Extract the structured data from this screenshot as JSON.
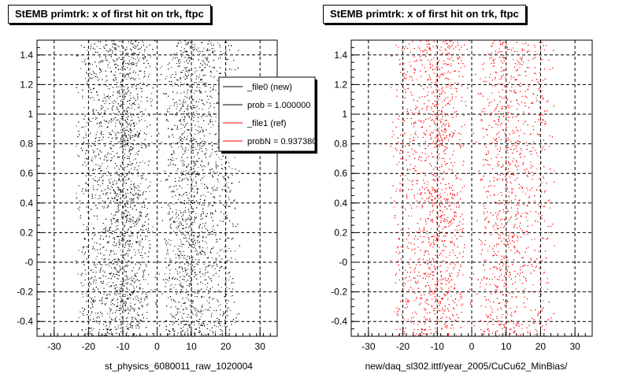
{
  "colors": {
    "new": "#000000",
    "ref": "#ff0000",
    "grid": "#000000",
    "background": "#ffffff"
  },
  "chart_data": [
    {
      "type": "scatter",
      "title": "StEMB primtrk: x of first hit on trk, ftpc",
      "xlabel": "st_physics_6080011_raw_1020004",
      "ylabel": "",
      "xlim": [
        -35,
        35
      ],
      "ylim": [
        -0.5,
        1.5
      ],
      "xticks": [
        -30,
        -20,
        -10,
        0,
        10,
        20,
        30
      ],
      "xtick_labels": [
        "-30",
        "-20",
        "-10",
        "0",
        "10",
        "20",
        "30"
      ],
      "yticks": [
        -0.4,
        -0.2,
        0,
        0.2,
        0.4,
        0.6,
        0.8,
        1.0,
        1.2,
        1.4
      ],
      "ytick_labels": [
        "-0.4",
        "-0.2",
        "-0",
        "0.2",
        "0.4",
        "0.6",
        "0.8",
        "1",
        "1.2",
        "1.4"
      ],
      "grid": true,
      "series": [
        {
          "name": "_file0 (new)",
          "color": "#000000",
          "density_bands": [
            {
              "x_center": -17,
              "x_width": 5,
              "weight": 0.8
            },
            {
              "x_center": -9,
              "x_width": 3,
              "weight": 1.6
            },
            {
              "x_center": 9,
              "x_width": 3,
              "weight": 1.2
            },
            {
              "x_center": 17,
              "x_width": 5,
              "weight": 0.7
            }
          ],
          "x_extent": [
            -22,
            22
          ]
        }
      ],
      "legend": {
        "position": "top-right",
        "entries": [
          {
            "label": "_file0 (new)",
            "color": "#000000"
          },
          {
            "label": "prob = 1.000000",
            "color": "#000000"
          },
          {
            "label": "_file1 (ref)",
            "color": "#ff0000"
          },
          {
            "label": "probN = 0.937380",
            "color": "#ff0000"
          }
        ]
      }
    },
    {
      "type": "scatter",
      "title": "StEMB primtrk: x of first hit on trk, ftpc",
      "xlabel": "new/daq_sl302.ittf/year_2005/CuCu62_MinBias/",
      "ylabel": "",
      "xlim": [
        -35,
        35
      ],
      "ylim": [
        -0.5,
        1.5
      ],
      "xticks": [
        -30,
        -20,
        -10,
        0,
        10,
        20,
        30
      ],
      "xtick_labels": [
        "-30",
        "-20",
        "-10",
        "0",
        "10",
        "20",
        "30"
      ],
      "yticks": [
        -0.4,
        -0.2,
        0,
        0.2,
        0.4,
        0.6,
        0.8,
        1.0,
        1.2,
        1.4
      ],
      "ytick_labels": [
        "-0.4",
        "-0.2",
        "-0",
        "0.2",
        "0.4",
        "0.6",
        "0.8",
        "1",
        "1.2",
        "1.4"
      ],
      "grid": true,
      "series": [
        {
          "name": "_file1 (ref)",
          "color": "#ff0000",
          "density_bands": [
            {
              "x_center": -17,
              "x_width": 5,
              "weight": 0.8
            },
            {
              "x_center": -9,
              "x_width": 3,
              "weight": 1.6
            },
            {
              "x_center": 9,
              "x_width": 3,
              "weight": 1.2
            },
            {
              "x_center": 17,
              "x_width": 5,
              "weight": 0.7
            }
          ],
          "x_extent": [
            -22,
            22
          ]
        }
      ]
    }
  ]
}
